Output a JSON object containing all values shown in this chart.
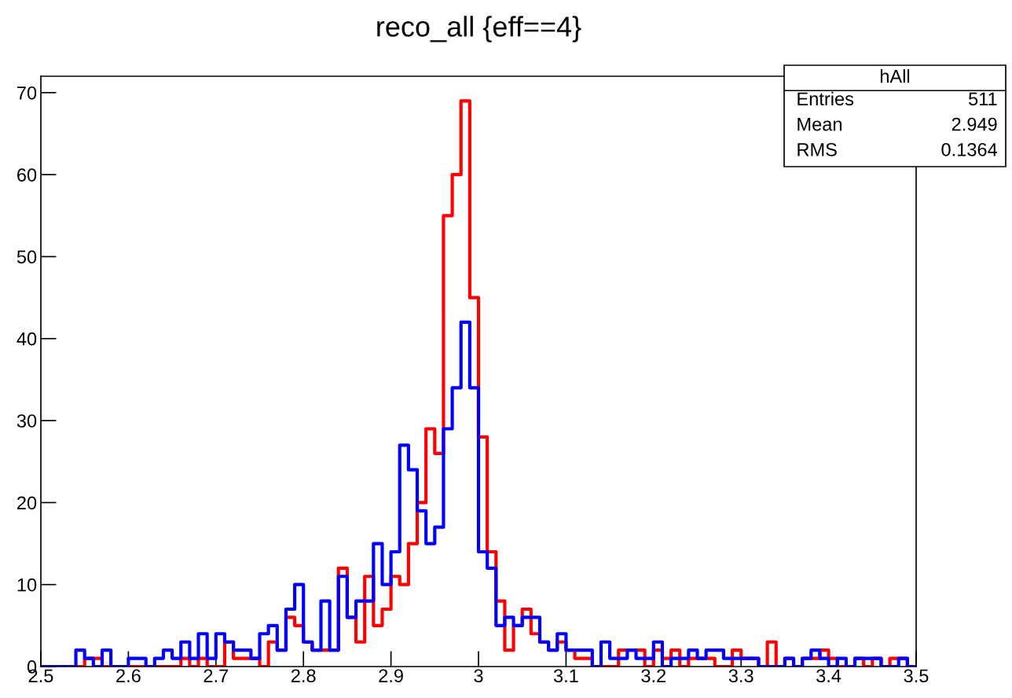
{
  "chart_data": {
    "type": "histogram",
    "title": "reco_all {eff==4}",
    "bins": [
      2.5,
      2.51,
      2.52,
      2.53,
      2.54,
      2.55,
      2.56,
      2.57,
      2.58,
      2.59,
      2.6,
      2.61,
      2.62,
      2.63,
      2.64,
      2.65,
      2.66,
      2.67,
      2.68,
      2.69,
      2.7,
      2.71,
      2.72,
      2.73,
      2.74,
      2.75,
      2.76,
      2.77,
      2.78,
      2.79,
      2.8,
      2.81,
      2.82,
      2.83,
      2.84,
      2.85,
      2.86,
      2.87,
      2.88,
      2.89,
      2.9,
      2.91,
      2.92,
      2.93,
      2.94,
      2.95,
      2.96,
      2.97,
      2.98,
      2.99,
      3.0,
      3.01,
      3.02,
      3.03,
      3.04,
      3.05,
      3.06,
      3.07,
      3.08,
      3.09,
      3.1,
      3.11,
      3.12,
      3.13,
      3.14,
      3.15,
      3.16,
      3.17,
      3.18,
      3.19,
      3.2,
      3.21,
      3.22,
      3.23,
      3.24,
      3.25,
      3.26,
      3.27,
      3.28,
      3.29,
      3.3,
      3.31,
      3.32,
      3.33,
      3.34,
      3.35,
      3.36,
      3.37,
      3.38,
      3.39,
      3.4,
      3.41,
      3.42,
      3.43,
      3.44,
      3.45,
      3.46,
      3.47,
      3.48,
      3.49,
      3.5
    ],
    "series": [
      {
        "color": "#ff0000",
        "values": [
          0,
          0,
          0,
          0,
          0,
          1,
          1,
          0,
          0,
          0,
          0,
          0,
          0,
          0,
          0,
          0,
          1,
          0,
          1,
          0,
          0,
          3,
          1,
          1,
          1,
          0,
          3,
          2,
          6,
          5,
          3,
          2,
          2,
          2,
          12,
          6,
          3,
          11,
          5,
          7,
          11,
          10,
          15,
          20,
          29,
          26,
          55,
          60,
          69,
          45,
          28,
          14,
          8,
          2,
          5,
          7,
          4,
          3,
          2,
          3,
          2,
          1,
          1,
          0,
          0,
          0,
          2,
          2,
          2,
          0,
          2,
          1,
          2,
          0,
          1,
          1,
          1,
          0,
          0,
          2,
          1,
          1,
          0,
          3,
          0,
          1,
          0,
          1,
          1,
          2,
          1,
          0,
          0,
          1,
          0,
          1,
          0,
          1,
          1,
          0
        ]
      },
      {
        "color": "#0000ff",
        "values": [
          0,
          0,
          0,
          0,
          2,
          1,
          0,
          2,
          0,
          0,
          1,
          1,
          0,
          1,
          2,
          1,
          3,
          1,
          4,
          1,
          4,
          3,
          2,
          2,
          1,
          4,
          5,
          2,
          7,
          10,
          3,
          2,
          8,
          2,
          11,
          6,
          8,
          8,
          15,
          10,
          14,
          27,
          24,
          19,
          15,
          17,
          29,
          34,
          42,
          34,
          14,
          12,
          5,
          6,
          5,
          6,
          6,
          3,
          2,
          4,
          2,
          2,
          2,
          0,
          3,
          1,
          1,
          2,
          1,
          1,
          3,
          0,
          1,
          1,
          2,
          1,
          2,
          2,
          1,
          1,
          1,
          1,
          0,
          0,
          0,
          1,
          0,
          1,
          2,
          1,
          0,
          1,
          0,
          1,
          1,
          1,
          0,
          0,
          1,
          0
        ]
      }
    ],
    "xlim": [
      2.5,
      3.5
    ],
    "xticks": [
      2.5,
      2.6,
      2.7,
      2.8,
      2.9,
      {
        "value": 3.0,
        "label": "3"
      },
      3.1,
      3.2,
      3.3,
      3.4,
      3.5
    ],
    "ylim": [
      0,
      72
    ],
    "yticks": [
      0,
      10,
      20,
      30,
      40,
      50,
      60,
      70
    ],
    "annotations": [
      "hAll",
      "Entries 511",
      "Mean 2.949",
      "RMS 0.1364"
    ],
    "grid": false,
    "legend": false
  }
}
